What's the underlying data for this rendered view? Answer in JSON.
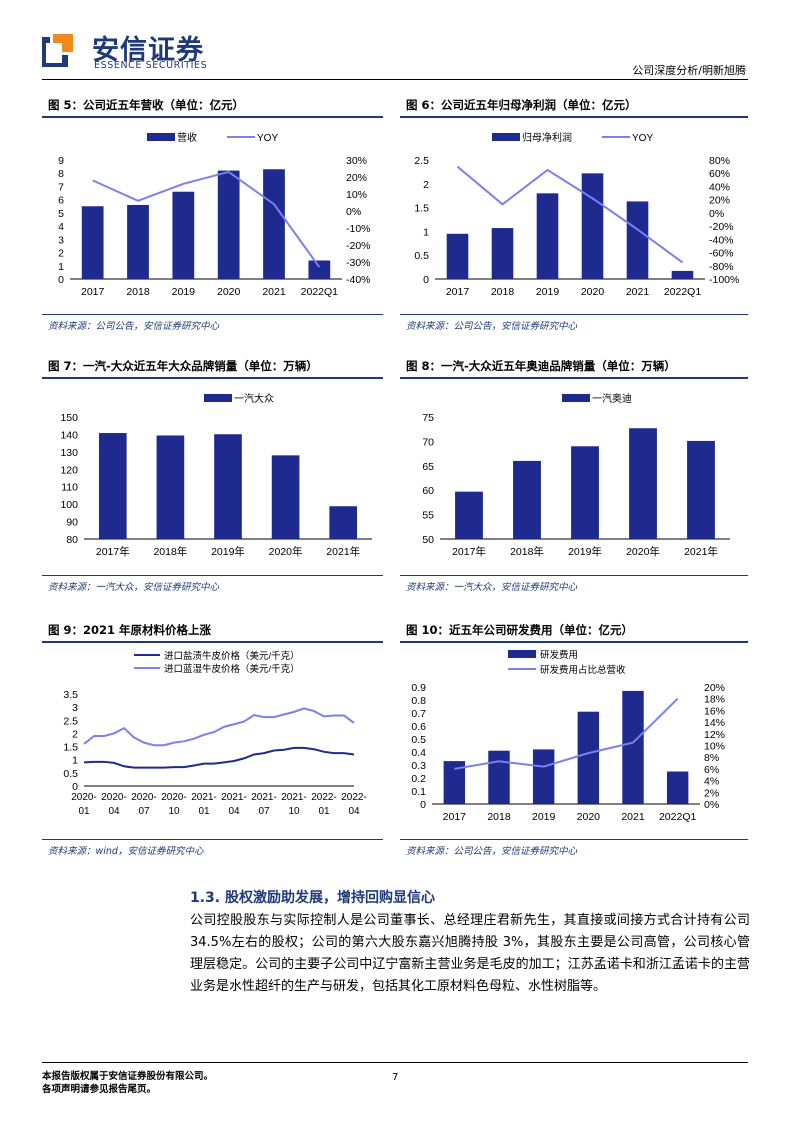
{
  "header": {
    "logo_cn": "安信证券",
    "logo_en": "ESSENCE SECURITIES",
    "right_text": "公司深度分析/明新旭腾"
  },
  "figures": [
    {
      "title": "图 5：公司近五年营收（单位：亿元）",
      "source": "资料来源：公司公告，安信证券研究中心"
    },
    {
      "title": "图 6：公司近五年归母净利润（单位：亿元）",
      "source": "资料来源：公司公告，安信证券研究中心"
    },
    {
      "title": "图 7：一汽-大众近五年大众品牌销量（单位：万辆）",
      "source": "资料来源：一汽大众，安信证券研究中心"
    },
    {
      "title": "图 8：一汽-大众近五年奥迪品牌销量（单位：万辆）",
      "source": "资料来源：一汽大众，安信证券研究中心"
    },
    {
      "title": "图 9：2021 年原材料价格上涨",
      "source": "资料来源：wind，安信证券研究中心"
    },
    {
      "title": "图 10：近五年公司研发费用（单位：亿元）",
      "source": "资料来源：公司公告，安信证券研究中心"
    }
  ],
  "chart_data": [
    {
      "type": "bar",
      "categories": [
        "2017",
        "2018",
        "2019",
        "2020",
        "2021",
        "2022Q1"
      ],
      "series": [
        {
          "name": "营收",
          "type": "bar",
          "axis": "left",
          "values": [
            5.5,
            5.6,
            6.6,
            8.2,
            8.3,
            1.4
          ]
        },
        {
          "name": "YOY",
          "type": "line",
          "axis": "right",
          "values": [
            18,
            6,
            16,
            23,
            4,
            -33
          ]
        }
      ],
      "y_left": {
        "range": [
          0,
          9
        ],
        "ticks": [
          "0",
          "1",
          "2",
          "3",
          "4",
          "5",
          "6",
          "7",
          "8",
          "9"
        ]
      },
      "y_right": {
        "range": [
          -40,
          30
        ],
        "ticks": [
          "-40%",
          "-30%",
          "-20%",
          "-10%",
          "0%",
          "10%",
          "20%",
          "30%"
        ]
      },
      "legend": "top"
    },
    {
      "type": "bar",
      "categories": [
        "2017",
        "2018",
        "2019",
        "2020",
        "2021",
        "2022Q1"
      ],
      "series": [
        {
          "name": "归母净利润",
          "type": "bar",
          "axis": "left",
          "values": [
            0.95,
            1.07,
            1.8,
            2.22,
            1.63,
            0.17
          ]
        },
        {
          "name": "YOY",
          "type": "line",
          "axis": "right",
          "values": [
            70,
            13,
            65,
            22,
            -25,
            -75
          ]
        }
      ],
      "y_left": {
        "range": [
          0,
          2.5
        ],
        "ticks": [
          "0",
          "0.5",
          "1",
          "1.5",
          "2",
          "2.5"
        ]
      },
      "y_right": {
        "range": [
          -100,
          80
        ],
        "ticks": [
          "-100%",
          "-80%",
          "-60%",
          "-40%",
          "-20%",
          "0%",
          "20%",
          "40%",
          "60%",
          "80%"
        ]
      },
      "legend": "top"
    },
    {
      "type": "bar",
      "categories": [
        "2017年",
        "2018年",
        "2019年",
        "2020年",
        "2021年"
      ],
      "series": [
        {
          "name": "一汽大众",
          "values": [
            140.8,
            139.4,
            140.1,
            128.0,
            98.8
          ]
        }
      ],
      "y_left": {
        "range": [
          80,
          150
        ],
        "ticks": [
          "80",
          "90",
          "100",
          "110",
          "120",
          "130",
          "140",
          "150"
        ]
      },
      "legend": "top"
    },
    {
      "type": "bar",
      "categories": [
        "2017年",
        "2018年",
        "2019年",
        "2020年",
        "2021年"
      ],
      "series": [
        {
          "name": "一汽奥迪",
          "values": [
            59.7,
            66.0,
            69.0,
            72.7,
            70.1
          ]
        }
      ],
      "y_left": {
        "range": [
          50,
          75
        ],
        "ticks": [
          "50",
          "55",
          "60",
          "65",
          "70",
          "75"
        ]
      },
      "legend": "top"
    },
    {
      "type": "line",
      "categories": [
        "2020-01",
        "2020-02",
        "2020-03",
        "2020-04",
        "2020-05",
        "2020-06",
        "2020-07",
        "2020-08",
        "2020-09",
        "2020-10",
        "2020-11",
        "2020-12",
        "2021-01",
        "2021-02",
        "2021-03",
        "2021-04",
        "2021-05",
        "2021-06",
        "2021-07",
        "2021-08",
        "2021-09",
        "2021-10",
        "2021-11",
        "2021-12",
        "2022-01",
        "2022-02",
        "2022-03",
        "2022-04"
      ],
      "x_tick_labels": [
        [
          "2020-",
          "01"
        ],
        [
          "2020-",
          "04"
        ],
        [
          "2020-",
          "07"
        ],
        [
          "2020-",
          "10"
        ],
        [
          "2021-",
          "01"
        ],
        [
          "2021-",
          "04"
        ],
        [
          "2021-",
          "07"
        ],
        [
          "2021-",
          "10"
        ],
        [
          "2022-",
          "01"
        ],
        [
          "2022-",
          "04"
        ]
      ],
      "series": [
        {
          "name": "进口盐渍牛皮价格（美元/千克）",
          "color": "#1f2a8f",
          "values": [
            0.9,
            0.92,
            0.92,
            0.88,
            0.75,
            0.7,
            0.7,
            0.7,
            0.7,
            0.72,
            0.72,
            0.78,
            0.85,
            0.85,
            0.9,
            0.95,
            1.05,
            1.2,
            1.25,
            1.35,
            1.38,
            1.45,
            1.45,
            1.4,
            1.3,
            1.25,
            1.25,
            1.2
          ]
        },
        {
          "name": "进口蓝湿牛皮价格（美元/千克）",
          "color": "#7b7ff0",
          "values": [
            1.6,
            1.9,
            1.9,
            2.0,
            2.2,
            1.85,
            1.65,
            1.55,
            1.55,
            1.65,
            1.7,
            1.8,
            1.95,
            2.05,
            2.25,
            2.35,
            2.45,
            2.7,
            2.62,
            2.62,
            2.72,
            2.82,
            2.95,
            2.85,
            2.65,
            2.68,
            2.68,
            2.4
          ]
        }
      ],
      "y_left": {
        "range": [
          0,
          3.5
        ],
        "ticks": [
          "0",
          "0.5",
          "1",
          "1.5",
          "2",
          "2.5",
          "3",
          "3.5"
        ]
      },
      "legend": "top"
    },
    {
      "type": "bar",
      "categories": [
        "2017",
        "2018",
        "2019",
        "2020",
        "2021",
        "2022Q1"
      ],
      "series": [
        {
          "name": "研发费用",
          "type": "bar",
          "axis": "left",
          "values": [
            0.33,
            0.41,
            0.42,
            0.71,
            0.87,
            0.25
          ]
        },
        {
          "name": "研发费用占比总营收",
          "type": "line",
          "axis": "right",
          "values": [
            6.0,
            7.3,
            6.4,
            8.7,
            10.5,
            18.0
          ]
        }
      ],
      "y_left": {
        "range": [
          0,
          0.9
        ],
        "ticks": [
          "0",
          "0.1",
          "0.2",
          "0.3",
          "0.4",
          "0.5",
          "0.6",
          "0.7",
          "0.8",
          "0.9"
        ]
      },
      "y_right": {
        "range": [
          0,
          20
        ],
        "ticks": [
          "0%",
          "2%",
          "4%",
          "6%",
          "8%",
          "10%",
          "12%",
          "14%",
          "16%",
          "18%",
          "20%"
        ]
      },
      "legend": "top"
    }
  ],
  "section": {
    "title": "1.3. 股权激励助发展，增持回购显信心",
    "paragraph": "公司控股股东与实际控制人是公司董事长、总经理庄君新先生，其直接或间接方式合计持有公司 34.5%左右的股权；公司的第六大股东嘉兴旭腾持股 3%，其股东主要是公司高管，公司核心管理层稳定。公司的主要子公司中辽宁富新主营业务是毛皮的加工；江苏孟诺卡和浙江孟诺卡的主营业务是水性超纤的生产与研发，包括其化工原材料色母粒、水性树脂等。"
  },
  "footer": {
    "line1": "本报告版权属于安信证券股份有限公司。",
    "line2": "各项声明请参见报告尾页。",
    "page": "7"
  },
  "colors": {
    "brand": "#1f3a7a",
    "bar": "#1f2a8f",
    "line": "#7b7ff0",
    "line_dark": "#1f2a8f"
  }
}
